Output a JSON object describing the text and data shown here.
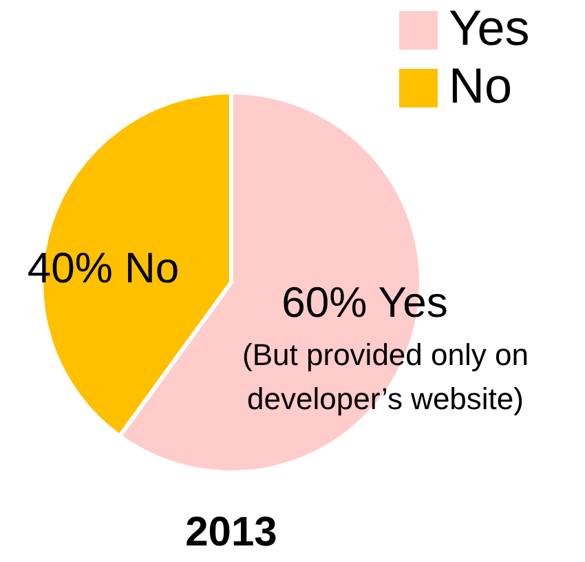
{
  "chart_data": {
    "type": "pie",
    "title": "2013",
    "categories": [
      "Yes",
      "No"
    ],
    "values": [
      60,
      40
    ],
    "colors": [
      "#ffcccc",
      "#ffc000"
    ],
    "value_labels": [
      "60% Yes",
      "40% No"
    ],
    "annotations": [
      "(But provided only on developer’s website)"
    ],
    "legend": "top right"
  }
}
